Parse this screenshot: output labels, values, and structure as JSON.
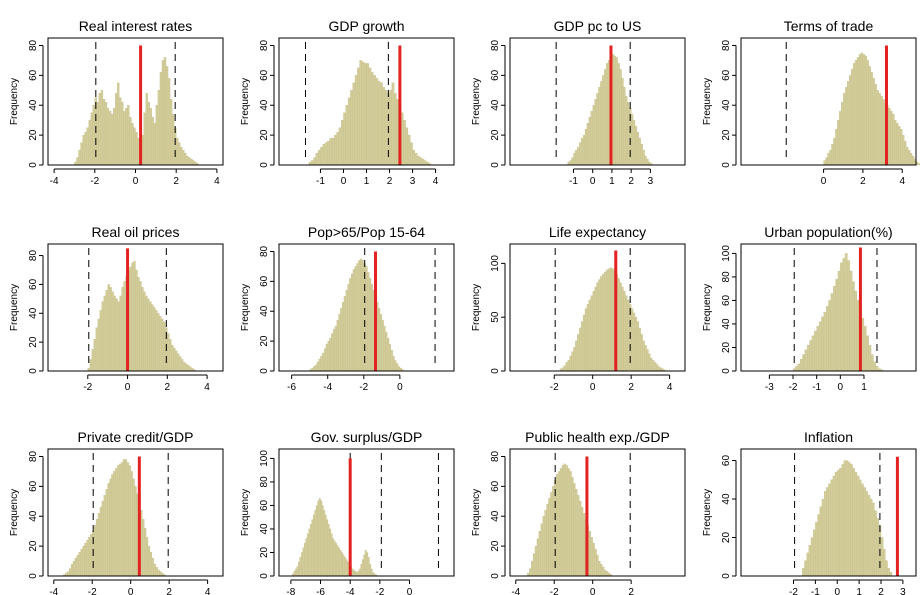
{
  "figure": {
    "y_axis_label": "Frequency",
    "bar_color": "#d2cc9a",
    "bar_edge_color": "#c4bd86",
    "marker_color": "#e32222",
    "guide_color": "#000000"
  },
  "chart_data": [
    {
      "type": "bar",
      "title": "Real interest rates",
      "ylabel": "Frequency",
      "xlim": [
        -4.3,
        4.3
      ],
      "ylim": [
        0,
        85
      ],
      "xticks": [
        -4,
        -2,
        0,
        2,
        4
      ],
      "yticks": [
        0,
        20,
        40,
        60,
        80
      ],
      "dashed_lines": [
        -1.95,
        1.95
      ],
      "red_line": {
        "x": 0.25,
        "height": 80
      },
      "bins": {
        "start": -3.0,
        "width": 0.1,
        "heights": [
          2,
          5,
          10,
          15,
          20,
          22,
          25,
          30,
          35,
          40,
          45,
          42,
          48,
          50,
          44,
          42,
          38,
          36,
          34,
          38,
          48,
          55,
          45,
          42,
          36,
          38,
          40,
          32,
          28,
          25,
          22,
          18,
          15,
          20,
          35,
          48,
          42,
          38,
          32,
          28,
          40,
          50,
          62,
          70,
          72,
          66,
          58,
          44,
          34,
          25,
          18,
          15,
          12,
          10,
          8,
          6,
          5,
          4,
          3,
          2,
          1
        ]
      }
    },
    {
      "type": "bar",
      "title": "GDP growth",
      "ylabel": "Frequency",
      "xlim": [
        -2.8,
        4.8
      ],
      "ylim": [
        0,
        85
      ],
      "xticks": [
        -1,
        0,
        1,
        2,
        3,
        4
      ],
      "yticks": [
        0,
        20,
        40,
        60,
        80
      ],
      "dashed_lines": [
        -1.65,
        1.95
      ],
      "red_line": {
        "x": 2.45,
        "height": 80
      },
      "bins": {
        "start": -1.5,
        "width": 0.1,
        "heights": [
          2,
          3,
          5,
          8,
          10,
          12,
          14,
          15,
          16,
          18,
          18,
          20,
          22,
          25,
          30,
          35,
          40,
          45,
          50,
          55,
          60,
          65,
          70,
          69,
          68,
          68,
          65,
          62,
          60,
          58,
          56,
          55,
          52,
          50,
          48,
          50,
          55,
          48,
          44,
          40,
          35,
          30,
          25,
          20,
          15,
          10,
          8,
          6,
          5,
          4,
          3,
          2,
          1
        ]
      }
    },
    {
      "type": "bar",
      "title": "GDP pc to US",
      "ylabel": "Frequency",
      "xlim": [
        -4.3,
        4.8
      ],
      "ylim": [
        0,
        85
      ],
      "xticks": [
        -1,
        0,
        1,
        2,
        3
      ],
      "yticks": [
        0,
        20,
        40,
        60,
        80
      ],
      "dashed_lines": [
        -1.9,
        1.95
      ],
      "red_line": {
        "x": 0.95,
        "height": 80
      },
      "bins": {
        "start": -1.3,
        "width": 0.1,
        "heights": [
          2,
          3,
          5,
          8,
          10,
          12,
          15,
          18,
          20,
          24,
          28,
          32,
          36,
          40,
          44,
          48,
          52,
          56,
          60,
          64,
          68,
          70,
          72,
          74,
          73,
          72,
          68,
          64,
          58,
          52,
          46,
          42,
          38,
          34,
          30,
          26,
          22,
          18,
          14,
          10,
          6,
          4,
          2,
          1
        ]
      }
    },
    {
      "type": "bar",
      "title": "Terms of trade",
      "ylabel": "Frequency",
      "xlim": [
        -4.2,
        4.7
      ],
      "ylim": [
        0,
        85
      ],
      "xticks": [
        0,
        2,
        4
      ],
      "yticks": [
        0,
        20,
        40,
        60,
        80
      ],
      "dashed_lines": [
        -1.9
      ],
      "red_line": {
        "x": 3.2,
        "height": 80
      },
      "bins": {
        "start": 0.0,
        "width": 0.1,
        "heights": [
          3,
          5,
          8,
          10,
          14,
          18,
          24,
          30,
          36,
          42,
          48,
          52,
          56,
          60,
          64,
          68,
          70,
          72,
          74,
          75,
          74,
          73,
          70,
          66,
          62,
          58,
          54,
          50,
          48,
          46,
          44,
          42,
          40,
          38,
          36,
          34,
          30,
          28,
          26,
          24,
          20,
          16,
          12,
          10,
          8,
          6,
          4,
          2,
          1
        ]
      }
    },
    {
      "type": "bar",
      "title": "Real oil prices",
      "ylabel": "Frequency",
      "xlim": [
        -4.0,
        4.8
      ],
      "ylim": [
        0,
        88
      ],
      "xticks": [
        -2,
        0,
        2,
        4
      ],
      "yticks": [
        0,
        20,
        40,
        60,
        80
      ],
      "dashed_lines": [
        -1.95,
        1.95
      ],
      "red_line": {
        "x": 0.0,
        "height": 85
      },
      "bins": {
        "start": -2.0,
        "width": 0.1,
        "heights": [
          2,
          8,
          15,
          22,
          30,
          36,
          42,
          48,
          52,
          56,
          60,
          58,
          55,
          52,
          50,
          48,
          52,
          58,
          62,
          66,
          70,
          72,
          75,
          76,
          70,
          65,
          62,
          58,
          55,
          52,
          50,
          48,
          46,
          44,
          42,
          40,
          38,
          36,
          34,
          30,
          26,
          22,
          18,
          16,
          14,
          12,
          10,
          8,
          6,
          5,
          4,
          3,
          2,
          1
        ]
      }
    },
    {
      "type": "bar",
      "title": "Pop>65/Pop 15-64",
      "ylabel": "Frequency",
      "xlim": [
        -6.7,
        3.0
      ],
      "ylim": [
        0,
        85
      ],
      "xticks": [
        -6,
        -4,
        -2,
        0
      ],
      "yticks": [
        0,
        20,
        40,
        60,
        80
      ],
      "dashed_lines": [
        -1.95,
        1.95
      ],
      "red_line": {
        "x": -1.35,
        "height": 80
      },
      "bins": {
        "start": -5.0,
        "width": 0.1,
        "heights": [
          1,
          2,
          3,
          4,
          6,
          8,
          10,
          12,
          15,
          18,
          20,
          22,
          25,
          28,
          30,
          34,
          38,
          42,
          46,
          50,
          54,
          58,
          62,
          65,
          68,
          70,
          72,
          74,
          75,
          74,
          72,
          70,
          66,
          62,
          58,
          54,
          50,
          46,
          42,
          38,
          34,
          30,
          26,
          22,
          18,
          14,
          10,
          7,
          5,
          3,
          2,
          1
        ]
      }
    },
    {
      "type": "bar",
      "title": "Life expectancy",
      "ylabel": "Frequency",
      "xlim": [
        -4.3,
        4.8
      ],
      "ylim": [
        0,
        118
      ],
      "xticks": [
        -2,
        0,
        2,
        4
      ],
      "yticks": [
        0,
        50,
        100
      ],
      "dashed_lines": [
        -1.95,
        1.95
      ],
      "red_line": {
        "x": 1.2,
        "height": 112
      },
      "bins": {
        "start": -1.7,
        "width": 0.1,
        "heights": [
          2,
          3,
          5,
          8,
          10,
          14,
          18,
          22,
          28,
          34,
          40,
          46,
          52,
          58,
          62,
          66,
          70,
          74,
          78,
          82,
          85,
          88,
          90,
          92,
          94,
          95,
          96,
          95,
          93,
          90,
          86,
          82,
          78,
          74,
          70,
          66,
          62,
          58,
          54,
          50,
          46,
          40,
          34,
          28,
          24,
          20,
          16,
          12,
          10,
          8,
          6,
          4,
          3,
          2,
          1
        ]
      }
    },
    {
      "type": "bar",
      "title": "Urban population(%)",
      "ylabel": "Frequency",
      "xlim": [
        -4.2,
        3.2
      ],
      "ylim": [
        0,
        108
      ],
      "xticks": [
        -3,
        -2,
        -1,
        0,
        1
      ],
      "yticks": [
        0,
        20,
        40,
        60,
        80,
        100
      ],
      "dashed_lines": [
        -1.95,
        1.55
      ],
      "red_line": {
        "x": 0.85,
        "height": 105
      },
      "bins": {
        "start": -2.0,
        "width": 0.1,
        "heights": [
          2,
          4,
          6,
          10,
          14,
          18,
          22,
          26,
          30,
          34,
          38,
          42,
          46,
          50,
          55,
          60,
          66,
          72,
          78,
          85,
          92,
          96,
          100,
          94,
          85,
          76,
          68,
          60,
          52,
          45,
          38,
          30,
          22,
          14,
          8,
          4,
          2,
          1
        ]
      }
    },
    {
      "type": "bar",
      "title": "Private credit/GDP",
      "ylabel": "Frequency",
      "xlim": [
        -4.3,
        4.8
      ],
      "ylim": [
        0,
        85
      ],
      "xticks": [
        -4,
        -2,
        0,
        2,
        4
      ],
      "yticks": [
        0,
        20,
        40,
        60,
        80
      ],
      "dashed_lines": [
        -1.95,
        1.95
      ],
      "red_line": {
        "x": 0.45,
        "height": 80
      },
      "bins": {
        "start": -3.5,
        "width": 0.1,
        "heights": [
          1,
          2,
          3,
          5,
          8,
          10,
          12,
          14,
          16,
          18,
          20,
          22,
          24,
          26,
          28,
          30,
          34,
          38,
          42,
          46,
          50,
          54,
          58,
          62,
          65,
          68,
          70,
          72,
          74,
          75,
          76,
          78,
          78,
          76,
          74,
          70,
          65,
          60,
          55,
          50,
          44,
          38,
          32,
          26,
          20,
          16,
          12,
          8,
          6,
          4,
          3,
          2,
          1
        ]
      }
    },
    {
      "type": "bar",
      "title": "Gov. surplus/GDP",
      "ylabel": "Frequency",
      "xlim": [
        -8.8,
        3.0
      ],
      "ylim": [
        0,
        108
      ],
      "xticks": [
        -8,
        -6,
        -4,
        -2,
        0
      ],
      "yticks": [
        0,
        20,
        40,
        60,
        80,
        100
      ],
      "dashed_lines": [
        -4.0,
        -1.9,
        1.95
      ],
      "red_line": {
        "x": -4.0,
        "height": 100
      },
      "bins": {
        "start": -7.9,
        "width": 0.1,
        "heights": [
          2,
          4,
          6,
          8,
          12,
          16,
          20,
          24,
          28,
          32,
          36,
          40,
          44,
          48,
          52,
          56,
          60,
          64,
          66,
          64,
          60,
          56,
          52,
          48,
          44,
          40,
          36,
          32,
          30,
          28,
          26,
          24,
          22,
          20,
          18,
          16,
          14,
          12,
          10,
          8,
          6,
          5,
          4,
          3,
          4,
          6,
          10,
          14,
          18,
          22,
          20,
          16,
          10,
          6,
          3,
          2,
          1
        ]
      }
    },
    {
      "type": "bar",
      "title": "Public health exp./GDP",
      "ylabel": "Frequency",
      "xlim": [
        -4.3,
        4.8
      ],
      "ylim": [
        0,
        85
      ],
      "xticks": [
        -4,
        -2,
        0,
        2
      ],
      "yticks": [
        0,
        20,
        40,
        60,
        80
      ],
      "dashed_lines": [
        -1.95,
        1.95
      ],
      "red_line": {
        "x": -0.3,
        "height": 80
      },
      "bins": {
        "start": -3.4,
        "width": 0.1,
        "heights": [
          2,
          5,
          10,
          15,
          20,
          25,
          30,
          35,
          40,
          44,
          48,
          52,
          56,
          60,
          64,
          68,
          70,
          72,
          74,
          75,
          74,
          72,
          70,
          66,
          62,
          58,
          54,
          50,
          46,
          42,
          38,
          34,
          30,
          26,
          22,
          18,
          14,
          10,
          8,
          6,
          4,
          3,
          2,
          1
        ]
      }
    },
    {
      "type": "bar",
      "title": "Inflation",
      "ylabel": "Frequency",
      "xlim": [
        -4.4,
        3.6
      ],
      "ylim": [
        0,
        66
      ],
      "xticks": [
        -2,
        -1,
        0,
        1,
        2,
        3
      ],
      "yticks": [
        0,
        20,
        40,
        60
      ],
      "dashed_lines": [
        -1.95,
        1.95
      ],
      "red_line": {
        "x": 2.75,
        "height": 62
      },
      "bins": {
        "start": -1.6,
        "width": 0.1,
        "heights": [
          4,
          8,
          12,
          16,
          20,
          24,
          28,
          32,
          36,
          40,
          44,
          46,
          48,
          50,
          52,
          54,
          55,
          56,
          58,
          60,
          60,
          59,
          58,
          56,
          54,
          52,
          50,
          48,
          46,
          44,
          42,
          40,
          38,
          34,
          30,
          26,
          20,
          14,
          8,
          4,
          2
        ]
      }
    }
  ]
}
